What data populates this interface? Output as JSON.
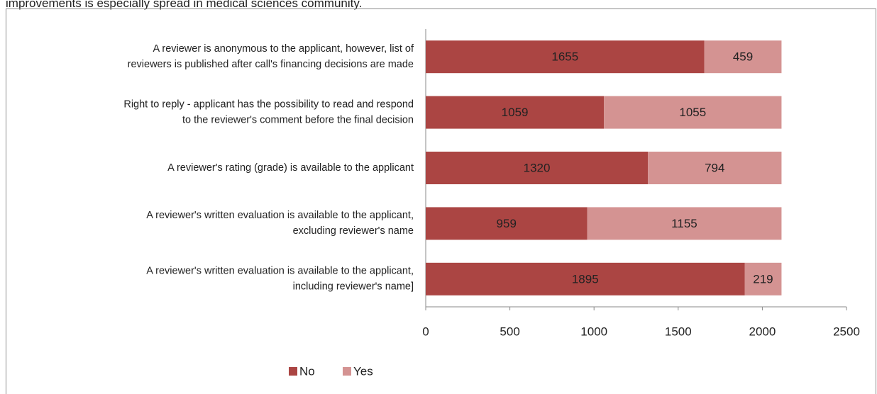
{
  "caption": "improvements is especially spread in medical sciences community.",
  "chart_data": {
    "type": "stacked-bar-horizontal",
    "categories": [
      [
        "A reviewer is anonymous to the applicant, however, list of",
        "reviewers is published after call's financing decisions are made"
      ],
      [
        "Right to reply - applicant has the possibility to read and respond",
        "to the reviewer's comment before the final decision"
      ],
      [
        "A reviewer's rating (grade) is available to the applicant"
      ],
      [
        "A reviewer's written evaluation is available to the applicant,",
        "excluding reviewer's name"
      ],
      [
        "A reviewer's written evaluation is available to the applicant,",
        "including reviewer's name]"
      ]
    ],
    "series": [
      {
        "name": "No",
        "color": "#ab4543",
        "values": [
          1655,
          1059,
          1320,
          959,
          1895
        ]
      },
      {
        "name": "Yes",
        "color": "#d49392",
        "values": [
          459,
          1055,
          794,
          1155,
          219
        ]
      }
    ],
    "xlim": [
      0,
      2500
    ],
    "xticks": [
      0,
      500,
      1000,
      1500,
      2000,
      2500
    ],
    "grid": false,
    "legend": "bottom"
  }
}
